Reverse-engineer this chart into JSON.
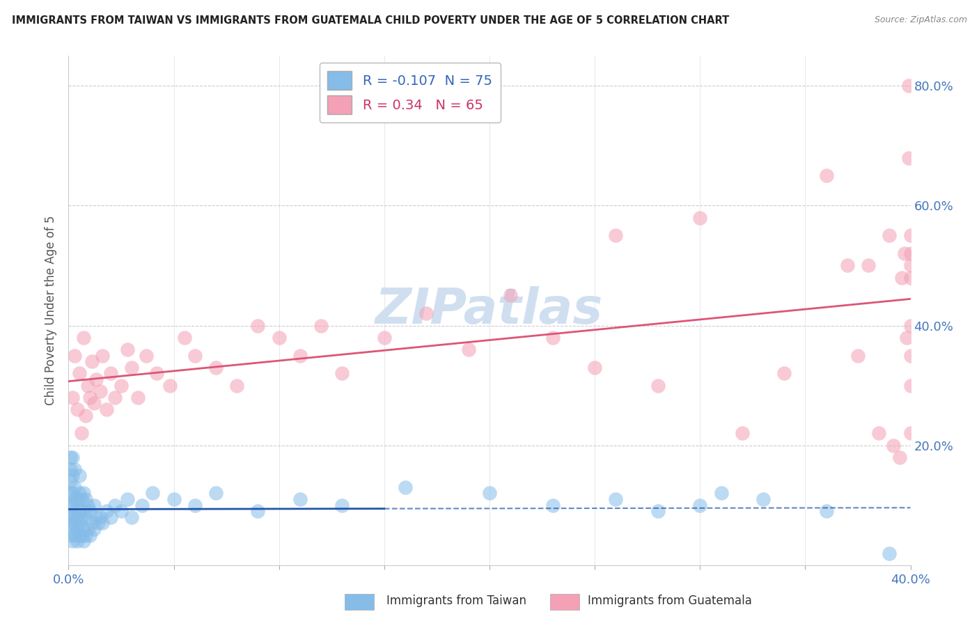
{
  "title": "IMMIGRANTS FROM TAIWAN VS IMMIGRANTS FROM GUATEMALA CHILD POVERTY UNDER THE AGE OF 5 CORRELATION CHART",
  "source": "Source: ZipAtlas.com",
  "ylabel": "Child Poverty Under the Age of 5",
  "xlim": [
    0.0,
    0.4
  ],
  "ylim": [
    0.0,
    0.85
  ],
  "taiwan_R": -0.107,
  "taiwan_N": 75,
  "guatemala_R": 0.34,
  "guatemala_N": 65,
  "taiwan_color": "#85bce8",
  "taiwan_edge_color": "#5599cc",
  "guatemala_color": "#f4a0b5",
  "guatemala_edge_color": "#e06888",
  "taiwan_line_color": "#2255aa",
  "guatemala_line_color": "#dd5577",
  "watermark_color": "#d0dff0",
  "taiwan_x": [
    0.001,
    0.001,
    0.001,
    0.001,
    0.001,
    0.001,
    0.001,
    0.001,
    0.002,
    0.002,
    0.002,
    0.002,
    0.002,
    0.002,
    0.002,
    0.003,
    0.003,
    0.003,
    0.003,
    0.003,
    0.003,
    0.004,
    0.004,
    0.004,
    0.004,
    0.005,
    0.005,
    0.005,
    0.005,
    0.005,
    0.006,
    0.006,
    0.006,
    0.007,
    0.007,
    0.007,
    0.007,
    0.008,
    0.008,
    0.008,
    0.009,
    0.009,
    0.01,
    0.01,
    0.011,
    0.012,
    0.012,
    0.013,
    0.014,
    0.015,
    0.016,
    0.018,
    0.02,
    0.022,
    0.025,
    0.028,
    0.03,
    0.035,
    0.04,
    0.05,
    0.06,
    0.07,
    0.09,
    0.11,
    0.13,
    0.16,
    0.2,
    0.23,
    0.26,
    0.28,
    0.3,
    0.31,
    0.33,
    0.36,
    0.39
  ],
  "taiwan_y": [
    0.05,
    0.07,
    0.08,
    0.1,
    0.12,
    0.14,
    0.16,
    0.18,
    0.04,
    0.06,
    0.08,
    0.1,
    0.12,
    0.15,
    0.18,
    0.05,
    0.07,
    0.09,
    0.11,
    0.13,
    0.16,
    0.04,
    0.06,
    0.08,
    0.11,
    0.05,
    0.07,
    0.09,
    0.12,
    0.15,
    0.05,
    0.08,
    0.11,
    0.04,
    0.06,
    0.09,
    0.12,
    0.05,
    0.08,
    0.11,
    0.06,
    0.1,
    0.05,
    0.09,
    0.07,
    0.06,
    0.1,
    0.08,
    0.07,
    0.08,
    0.07,
    0.09,
    0.08,
    0.1,
    0.09,
    0.11,
    0.08,
    0.1,
    0.12,
    0.11,
    0.1,
    0.12,
    0.09,
    0.11,
    0.1,
    0.13,
    0.12,
    0.1,
    0.11,
    0.09,
    0.1,
    0.12,
    0.11,
    0.09,
    0.02
  ],
  "guatemala_x": [
    0.002,
    0.003,
    0.004,
    0.005,
    0.006,
    0.007,
    0.008,
    0.009,
    0.01,
    0.011,
    0.012,
    0.013,
    0.015,
    0.016,
    0.018,
    0.02,
    0.022,
    0.025,
    0.028,
    0.03,
    0.033,
    0.037,
    0.042,
    0.048,
    0.055,
    0.06,
    0.07,
    0.08,
    0.09,
    0.1,
    0.11,
    0.12,
    0.13,
    0.15,
    0.17,
    0.19,
    0.21,
    0.23,
    0.25,
    0.26,
    0.28,
    0.3,
    0.32,
    0.34,
    0.36,
    0.37,
    0.375,
    0.38,
    0.385,
    0.39,
    0.392,
    0.395,
    0.396,
    0.397,
    0.398,
    0.399,
    0.399,
    0.4,
    0.4,
    0.4,
    0.4,
    0.4,
    0.4,
    0.4,
    0.4
  ],
  "guatemala_y": [
    0.28,
    0.35,
    0.26,
    0.32,
    0.22,
    0.38,
    0.25,
    0.3,
    0.28,
    0.34,
    0.27,
    0.31,
    0.29,
    0.35,
    0.26,
    0.32,
    0.28,
    0.3,
    0.36,
    0.33,
    0.28,
    0.35,
    0.32,
    0.3,
    0.38,
    0.35,
    0.33,
    0.3,
    0.4,
    0.38,
    0.35,
    0.4,
    0.32,
    0.38,
    0.42,
    0.36,
    0.45,
    0.38,
    0.33,
    0.55,
    0.3,
    0.58,
    0.22,
    0.32,
    0.65,
    0.5,
    0.35,
    0.5,
    0.22,
    0.55,
    0.2,
    0.18,
    0.48,
    0.52,
    0.38,
    0.68,
    0.8,
    0.55,
    0.4,
    0.5,
    0.22,
    0.35,
    0.3,
    0.52,
    0.48
  ]
}
